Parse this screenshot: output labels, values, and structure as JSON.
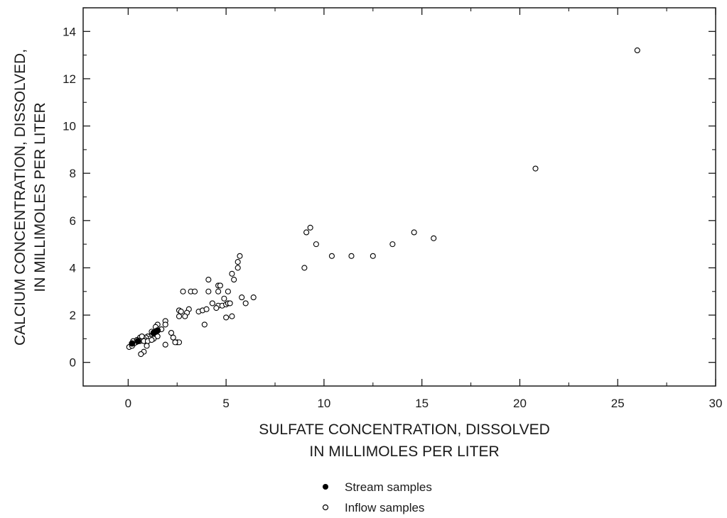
{
  "chart_data": {
    "type": "scatter",
    "title": "",
    "xlabel_lines": [
      "SULFATE CONCENTRATION, DISSOLVED",
      "IN MILLIMOLES PER LITER"
    ],
    "ylabel_lines": [
      "CALCIUM CONCENTRATION, DISSOLVED,",
      "IN MILLIMOLES PER LITER"
    ],
    "xlim": [
      -2.3,
      30
    ],
    "ylim": [
      -1,
      15
    ],
    "xticks": [
      0,
      5,
      10,
      15,
      20,
      25,
      30
    ],
    "yticks": [
      0,
      2,
      4,
      6,
      8,
      10,
      12,
      14
    ],
    "xtick_labels": [
      "0",
      "5",
      "10",
      "15",
      "20",
      "25",
      "30"
    ],
    "ytick_labels": [
      "0",
      "2",
      "4",
      "6",
      "8",
      "10",
      "12",
      "14"
    ],
    "grid": false,
    "legend_position": "bottom-center",
    "series": [
      {
        "name": "Stream samples",
        "marker": "filled-circle",
        "color": "#000000",
        "points": [
          [
            1.4,
            1.3
          ],
          [
            1.5,
            1.35
          ],
          [
            1.3,
            1.25
          ],
          [
            0.2,
            0.8
          ],
          [
            0.5,
            0.9
          ]
        ]
      },
      {
        "name": "Inflow samples",
        "marker": "open-circle",
        "color": "#000000",
        "points": [
          [
            26.0,
            13.2
          ],
          [
            20.8,
            8.2
          ],
          [
            9.3,
            5.7
          ],
          [
            9.1,
            5.5
          ],
          [
            14.6,
            5.5
          ],
          [
            15.6,
            5.25
          ],
          [
            9.6,
            5.0
          ],
          [
            13.5,
            5.0
          ],
          [
            10.4,
            4.5
          ],
          [
            11.4,
            4.5
          ],
          [
            12.5,
            4.5
          ],
          [
            9.0,
            4.0
          ],
          [
            5.7,
            4.5
          ],
          [
            5.6,
            4.25
          ],
          [
            5.6,
            4.0
          ],
          [
            5.3,
            3.75
          ],
          [
            5.4,
            3.5
          ],
          [
            4.1,
            3.5
          ],
          [
            4.6,
            3.25
          ],
          [
            4.7,
            3.25
          ],
          [
            2.8,
            3.0
          ],
          [
            3.2,
            3.0
          ],
          [
            3.4,
            3.0
          ],
          [
            4.1,
            3.0
          ],
          [
            4.6,
            3.0
          ],
          [
            5.1,
            3.0
          ],
          [
            5.8,
            2.75
          ],
          [
            6.4,
            2.75
          ],
          [
            6.0,
            2.5
          ],
          [
            4.9,
            2.7
          ],
          [
            3.1,
            2.25
          ],
          [
            4.3,
            2.5
          ],
          [
            4.6,
            2.4
          ],
          [
            4.8,
            2.4
          ],
          [
            5.0,
            2.45
          ],
          [
            5.1,
            2.5
          ],
          [
            5.2,
            2.5
          ],
          [
            2.6,
            2.2
          ],
          [
            2.7,
            2.15
          ],
          [
            3.0,
            2.1
          ],
          [
            3.6,
            2.15
          ],
          [
            3.8,
            2.2
          ],
          [
            4.0,
            2.25
          ],
          [
            4.5,
            2.3
          ],
          [
            2.6,
            1.95
          ],
          [
            2.9,
            1.95
          ],
          [
            5.0,
            1.9
          ],
          [
            5.3,
            1.95
          ],
          [
            3.9,
            1.6
          ],
          [
            2.2,
            1.25
          ],
          [
            2.3,
            1.05
          ],
          [
            2.5,
            0.85
          ],
          [
            2.6,
            0.85
          ],
          [
            2.4,
            0.85
          ],
          [
            1.9,
            0.75
          ],
          [
            1.9,
            1.75
          ],
          [
            1.9,
            1.6
          ],
          [
            1.7,
            1.4
          ],
          [
            1.5,
            1.6
          ],
          [
            1.4,
            1.5
          ],
          [
            1.2,
            1.3
          ],
          [
            1.1,
            1.1
          ],
          [
            1.0,
            1.1
          ],
          [
            1.1,
            1.0
          ],
          [
            0.9,
            1.05
          ],
          [
            0.8,
            1.0
          ],
          [
            0.7,
            1.0
          ],
          [
            0.6,
            1.05
          ],
          [
            0.5,
            0.9
          ],
          [
            0.4,
            0.85
          ],
          [
            0.3,
            0.8
          ],
          [
            0.2,
            0.8
          ],
          [
            0.25,
            0.9
          ],
          [
            0.15,
            0.7
          ],
          [
            0.05,
            0.65
          ],
          [
            0.2,
            0.7
          ],
          [
            0.6,
            0.9
          ],
          [
            0.8,
            0.9
          ],
          [
            1.0,
            0.9
          ],
          [
            0.95,
            0.7
          ],
          [
            0.8,
            0.45
          ],
          [
            0.65,
            0.35
          ],
          [
            1.5,
            1.1
          ],
          [
            1.3,
            1.0
          ],
          [
            1.2,
            0.95
          ],
          [
            0.7,
            1.1
          ],
          [
            0.45,
            0.95
          ]
        ]
      }
    ]
  }
}
